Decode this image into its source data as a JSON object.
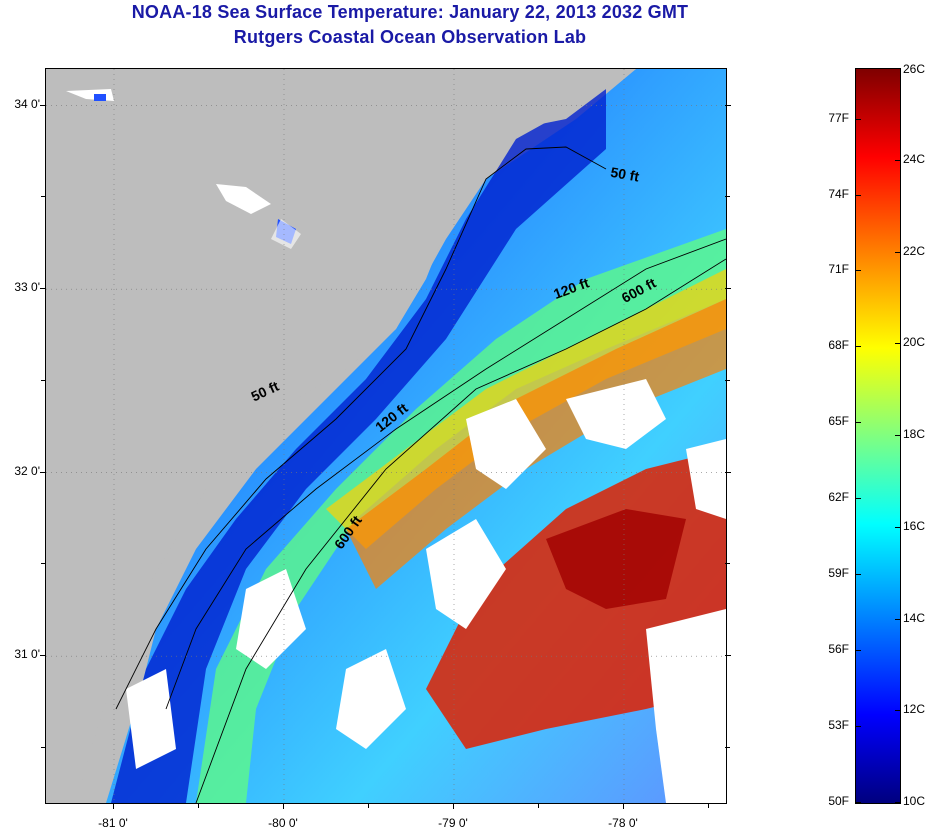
{
  "title": {
    "line1": "NOAA-18 Sea Surface Temperature:  January 22, 2013 2032 GMT",
    "line2": "Rutgers Coastal Ocean Observation Lab"
  },
  "map": {
    "lat_range": [
      30.2,
      34.2
    ],
    "lon_range": [
      -81.4,
      -77.4
    ],
    "lat_ticks": [
      {
        "value": 34,
        "label": "34 0'"
      },
      {
        "value": 33,
        "label": "33 0'"
      },
      {
        "value": 32,
        "label": "32 0'"
      },
      {
        "value": 31,
        "label": "31 0'"
      }
    ],
    "lon_ticks": [
      {
        "value": -81,
        "label": "-81 0'"
      },
      {
        "value": -80,
        "label": "-80 0'"
      },
      {
        "value": -79,
        "label": "-79 0'"
      },
      {
        "value": -78,
        "label": "-78 0'"
      }
    ],
    "land_color": "#bdbdbd",
    "contour_labels": [
      {
        "text": "50 ft",
        "lon": -78.0,
        "lat": 33.6,
        "angle": 10
      },
      {
        "text": "120 ft",
        "lon": -78.3,
        "lat": 32.98,
        "angle": -20
      },
      {
        "text": "600 ft",
        "lon": -77.9,
        "lat": 32.97,
        "angle": -28
      },
      {
        "text": "50 ft",
        "lon": -80.1,
        "lat": 32.42,
        "angle": -25
      },
      {
        "text": "120 ft",
        "lon": -79.35,
        "lat": 32.28,
        "angle": -38
      },
      {
        "text": "600 ft",
        "lon": -79.6,
        "lat": 31.66,
        "angle": -55
      }
    ]
  },
  "colorbar": {
    "range_c": [
      10,
      26
    ],
    "range_f": [
      50,
      79
    ],
    "celsius_labels": [
      "26C",
      "24C",
      "22C",
      "20C",
      "18C",
      "16C",
      "14C",
      "12C",
      "10C"
    ],
    "fahrenheit_labels": [
      "77F",
      "74F",
      "71F",
      "68F",
      "65F",
      "62F",
      "59F",
      "56F",
      "53F",
      "50F"
    ]
  }
}
